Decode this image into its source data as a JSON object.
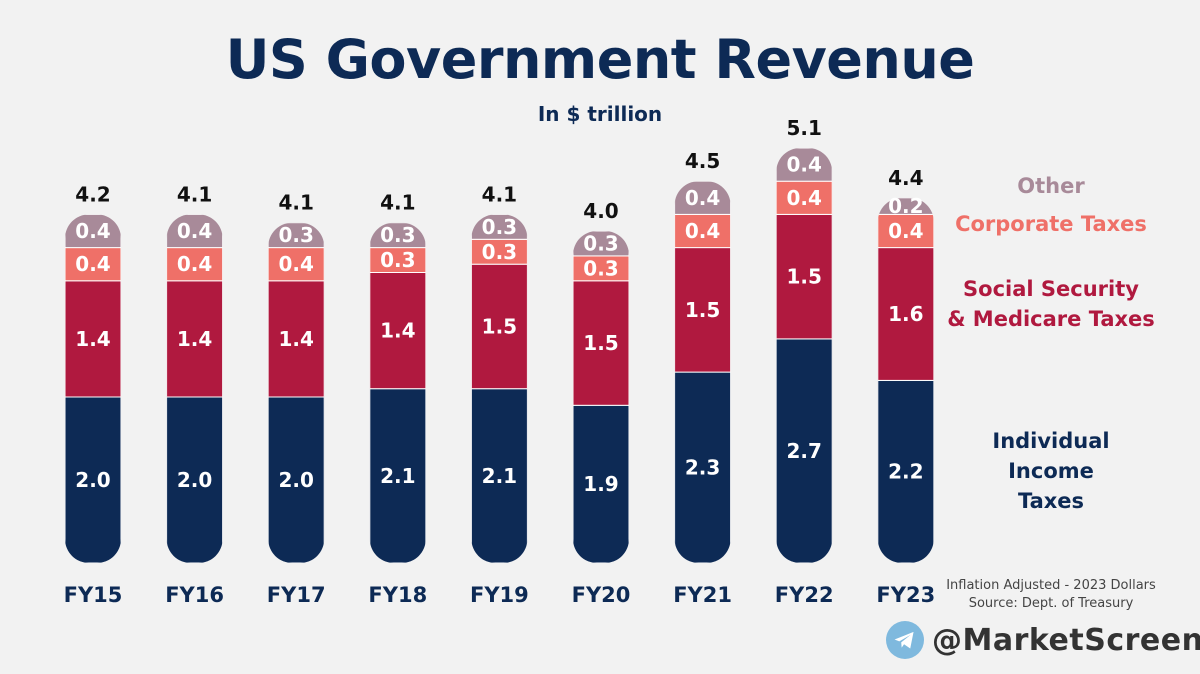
{
  "title": "US Government Revenue",
  "subtitle": "In $ trillion",
  "legend": {
    "other": "Other",
    "corporate": "Corporate Taxes",
    "social_line1": "Social Security",
    "social_line2": "& Medicare Taxes",
    "individual_line1": "Individual",
    "individual_line2": "Income",
    "individual_line3": "Taxes"
  },
  "note": {
    "line1": "Inflation Adjusted - 2023 Dollars",
    "line2": "Source: Dept. of Treasury"
  },
  "brand": {
    "handle": "@MarketScreen",
    "icon": "telegram-icon"
  },
  "colors": {
    "individual": "#0d2a55",
    "social": "#b0193f",
    "corporate": "#ef7068",
    "other": "#a88a99",
    "background": "#f2f2f2"
  },
  "chart_data": {
    "type": "bar",
    "stacked": true,
    "title": "US Government Revenue",
    "subtitle": "In $ trillion",
    "categories": [
      "FY15",
      "FY16",
      "FY17",
      "FY18",
      "FY19",
      "FY20",
      "FY21",
      "FY22",
      "FY23"
    ],
    "series": [
      {
        "name": "Individual Income Taxes",
        "values": [
          2.0,
          2.0,
          2.0,
          2.1,
          2.1,
          1.9,
          2.3,
          2.7,
          2.2
        ]
      },
      {
        "name": "Social Security & Medicare Taxes",
        "values": [
          1.4,
          1.4,
          1.4,
          1.4,
          1.5,
          1.5,
          1.5,
          1.5,
          1.6
        ]
      },
      {
        "name": "Corporate Taxes",
        "values": [
          0.4,
          0.4,
          0.4,
          0.3,
          0.3,
          0.3,
          0.4,
          0.4,
          0.4
        ]
      },
      {
        "name": "Other",
        "values": [
          0.4,
          0.4,
          0.3,
          0.3,
          0.3,
          0.3,
          0.4,
          0.4,
          0.2
        ]
      }
    ],
    "totals": [
      4.2,
      4.1,
      4.1,
      4.1,
      4.1,
      4.0,
      4.5,
      5.1,
      4.4
    ],
    "ylim": [
      0,
      5.4
    ],
    "grid": false,
    "legend_position": "right"
  }
}
